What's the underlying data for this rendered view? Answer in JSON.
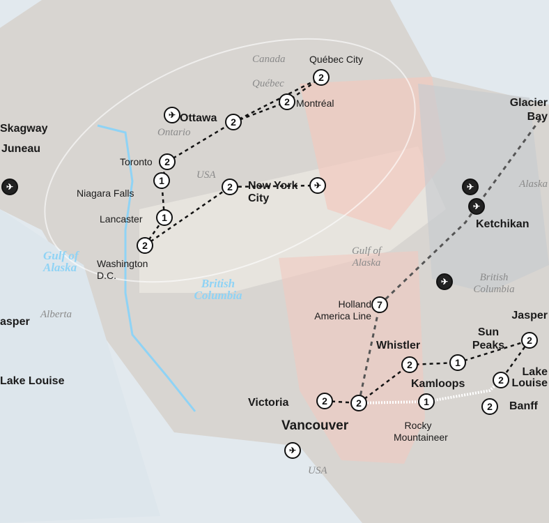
{
  "regions": {
    "canada": "Canada",
    "quebec": "Québec",
    "ontario": "Ontario",
    "usa_east": "USA",
    "alaska": "Alaska",
    "gulf_of_alaska": "Gulf of Alaska",
    "british_columbia": "British Columbia",
    "alberta": "Alberta",
    "usa_west": "USA",
    "gulf_of_alaska_water": "Gulf of Alaska",
    "british_columbia_water": "British Columbia"
  },
  "cities": {
    "quebec_city": "Québec City",
    "montreal": "Montréal",
    "ottawa": "Ottawa",
    "toronto": "Toronto",
    "niagara_falls": "Niagara Falls",
    "new_york_city": "New York City",
    "lancaster": "Lancaster",
    "washington_dc": "Washington D.C.",
    "skagway": "Skagway",
    "juneau": "Juneau",
    "glacier_bay": "Glacier Bay",
    "ketchikan": "Ketchikan",
    "jasper": "Jasper",
    "sun_peaks": "Sun Peaks",
    "whistler": "Whistler",
    "kamloops": "Kamloops",
    "lake_louise": "Lake Louise",
    "victoria": "Victoria",
    "banff": "Banff",
    "vancouver": "Vancouver",
    "jasper_partial": "asper",
    "lake_louise_partial": "Lake Louise"
  },
  "routes": {
    "holland_america": "Holland America Line",
    "rocky_mountaineer": "Rocky Mountaineer"
  },
  "nights": {
    "quebec_city": "2",
    "montreal": "2",
    "ottawa": "2",
    "toronto": "2",
    "niagara_falls": "1",
    "new_york_city": "2",
    "lancaster": "1",
    "washington_dc": "2",
    "cruise": "7",
    "whistler": "2",
    "sun_peaks": "1",
    "jasper": "2",
    "lake_louise": "2",
    "victoria": "2",
    "vancouver": "2",
    "kamloops": "1",
    "banff": "2"
  },
  "icons": {
    "flight": "plane-icon"
  },
  "colors": {
    "route": "#111111",
    "canada_land": "#d9d6d2",
    "usa_land": "#ebe7e1",
    "highlight": "#f2c9bf",
    "water": "#dde9f0",
    "water_label": "#8fd3f5"
  }
}
